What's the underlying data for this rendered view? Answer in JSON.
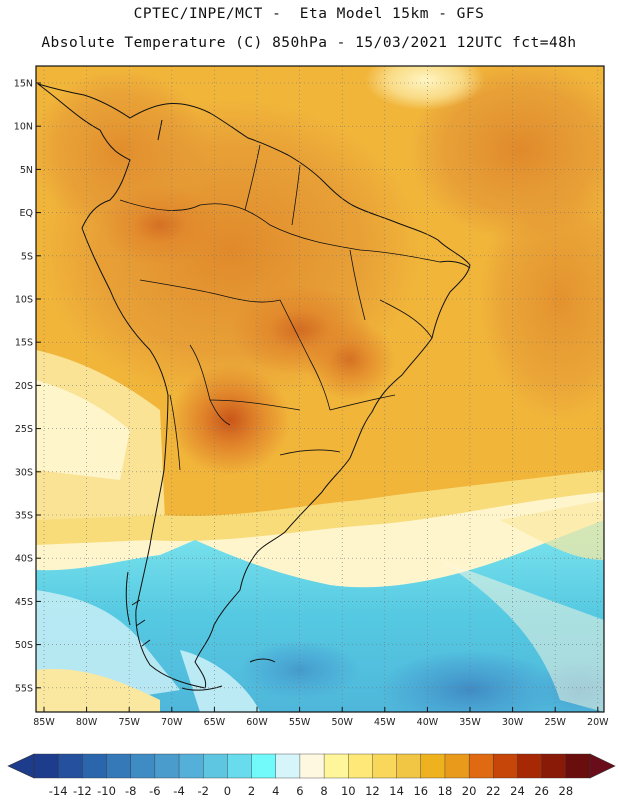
{
  "header": {
    "line1": "CPTEC/INPE/MCT -  Eta Model 15km - GFS",
    "line2": "Absolute Temperature (C) 850hPa - 15/03/2021 12UTC fct=48h"
  },
  "axes": {
    "lat_labels": [
      "15N",
      "10N",
      "5N",
      "EQ",
      "5S",
      "10S",
      "15S",
      "20S",
      "25S",
      "30S",
      "35S",
      "40S",
      "45S",
      "50S",
      "55S"
    ],
    "lon_labels": [
      "85W",
      "80W",
      "75W",
      "70W",
      "65W",
      "60W",
      "55W",
      "50W",
      "45W",
      "40W",
      "35W",
      "30W",
      "25W",
      "20W"
    ]
  },
  "colorbar": {
    "labels": [
      "-14",
      "-12",
      "-10",
      "-8",
      "-6",
      "-4",
      "-2",
      "0",
      "2",
      "4",
      "6",
      "8",
      "10",
      "12",
      "14",
      "16",
      "18",
      "20",
      "22",
      "24",
      "26",
      "28"
    ],
    "colors": [
      "#1e3c8c",
      "#24509e",
      "#2b66ad",
      "#3579b9",
      "#3f8bc4",
      "#4a9ccd",
      "#55b0d9",
      "#5fc6e2",
      "#68dced",
      "#72fafa",
      "#d6f5fa",
      "#fff8e0",
      "#fff59a",
      "#fde878",
      "#f8d75a",
      "#f1c645",
      "#efb21f",
      "#ea9a1a",
      "#e06a12",
      "#c64509",
      "#a72805",
      "#8a1a08",
      "#6a0d0d"
    ]
  }
}
